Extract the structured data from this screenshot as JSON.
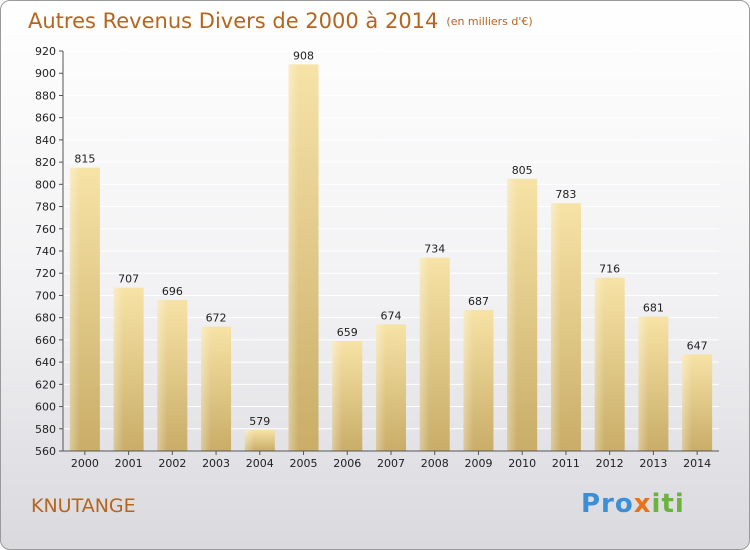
{
  "chart_data": {
    "type": "bar",
    "title": "Autres Revenus Divers de 2000 à 2014",
    "subtitle": "(en milliers d'€)",
    "categories": [
      "2000",
      "2001",
      "2002",
      "2003",
      "2004",
      "2005",
      "2006",
      "2007",
      "2008",
      "2009",
      "2010",
      "2011",
      "2012",
      "2013",
      "2014"
    ],
    "values": [
      815,
      707,
      696,
      672,
      579,
      908,
      659,
      674,
      734,
      687,
      805,
      783,
      716,
      681,
      647
    ],
    "ylim": [
      560,
      920
    ],
    "yticks": [
      560,
      580,
      600,
      620,
      640,
      660,
      680,
      700,
      720,
      740,
      760,
      780,
      800,
      820,
      840,
      860,
      880,
      900,
      920
    ],
    "grid": true,
    "bar_color": "#e8cf8a"
  },
  "location": "KNUTANGE",
  "logo": {
    "parts": [
      "Pro",
      "x",
      "iti"
    ],
    "colors": [
      "#3a8fd6",
      "#e8731a",
      "#6cb33e"
    ]
  }
}
